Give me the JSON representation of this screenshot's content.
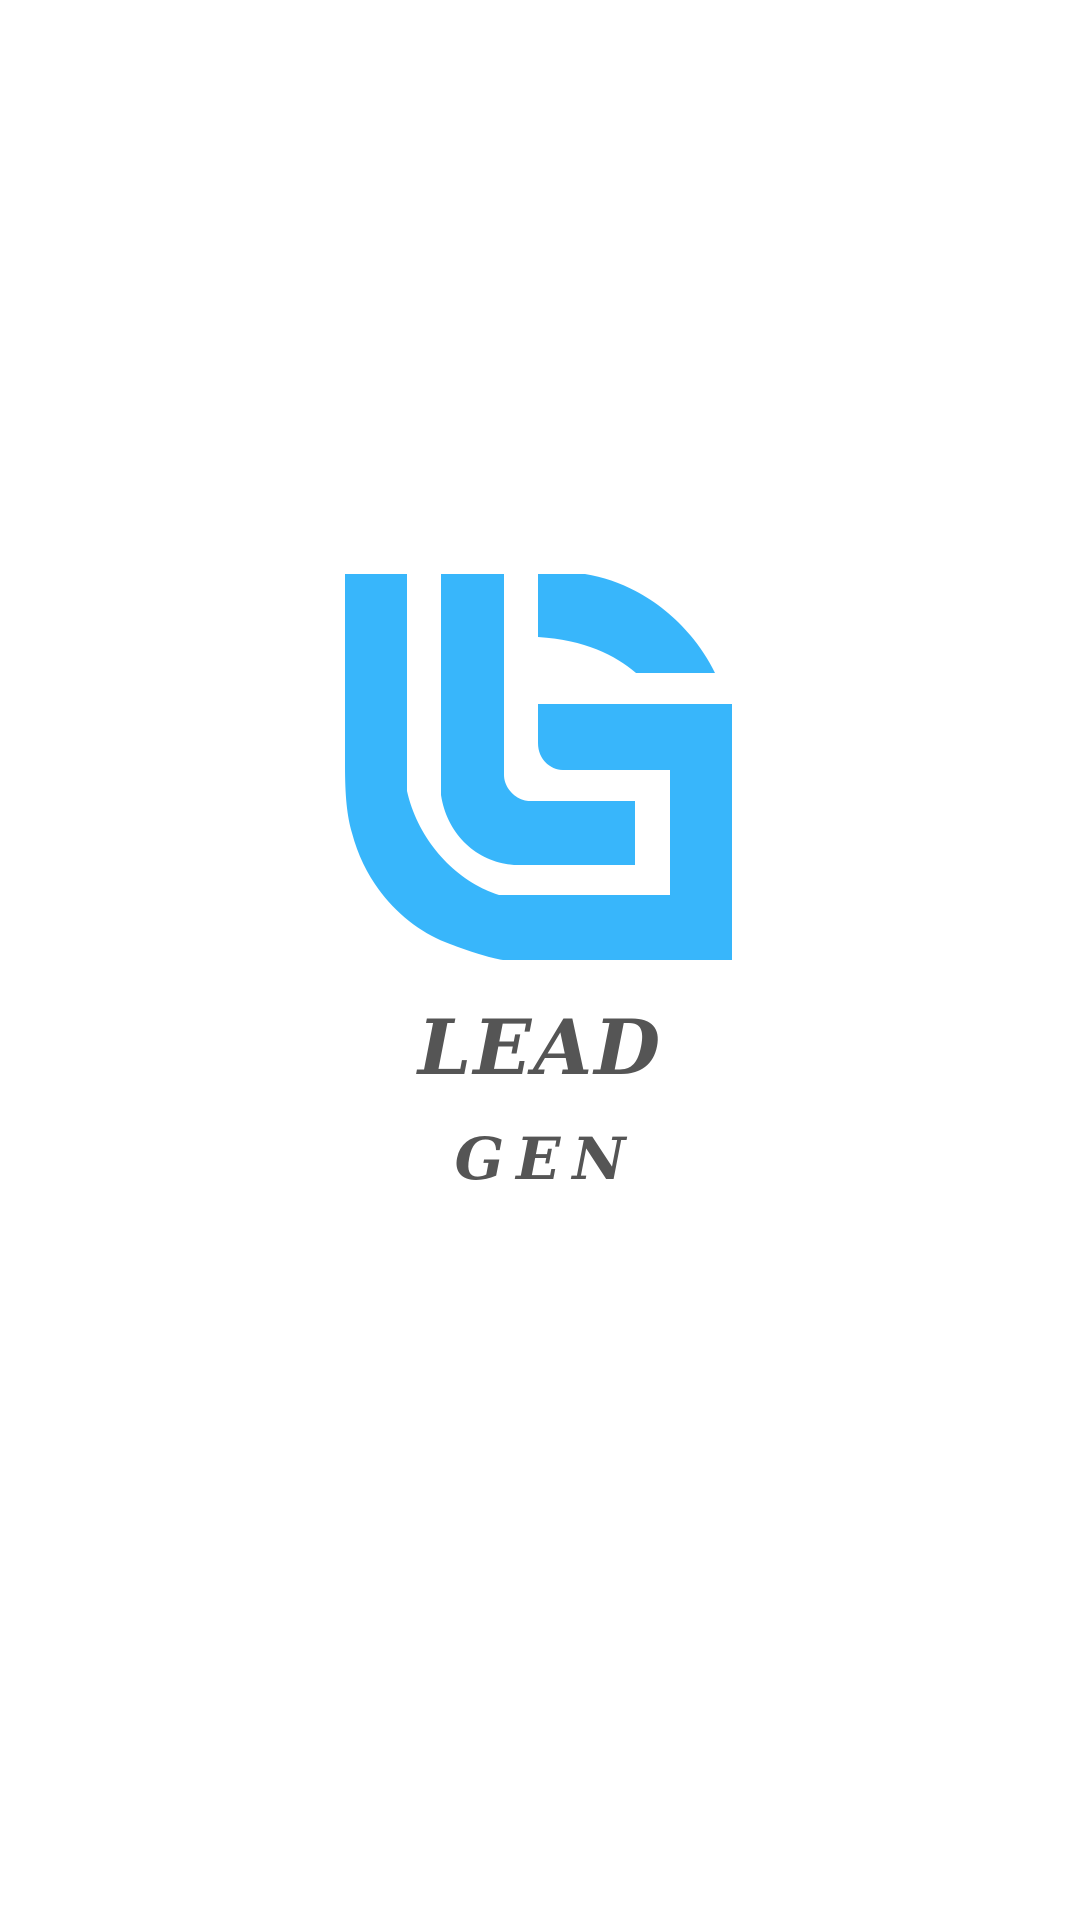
{
  "app": {
    "screen": "splash",
    "brand_color": "#38b6fb",
    "text_color": "#555555",
    "background": "#ffffff"
  },
  "logo": {
    "icon": "lg-monogram-icon",
    "title_line1": "LEAD",
    "title_line2": "GEN"
  }
}
